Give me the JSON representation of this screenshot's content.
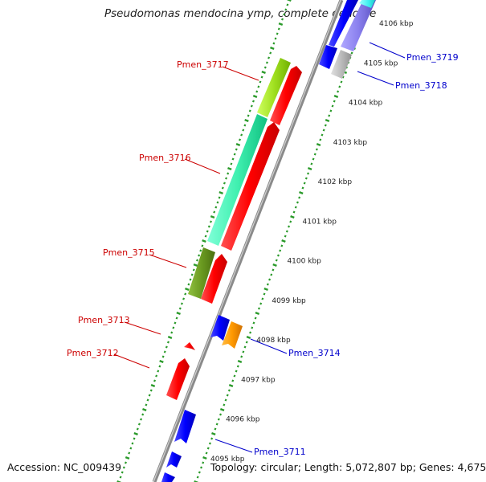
{
  "title": "Pseudomonas mendocina ymp, complete genome",
  "accession": "Accession: NC_009439",
  "topology": "Topology: circular; Length: 5,072,807 bp; Genes: 4,675",
  "scale_labels": [
    "4095 kbp",
    "4096 kbp",
    "4097 kbp",
    "4098 kbp",
    "4099 kbp",
    "4100 kbp",
    "4101 kbp",
    "4102 kbp",
    "4103 kbp",
    "4104 kbp",
    "4105 kbp",
    "4106 kbp"
  ],
  "genes": {
    "pmen_3711": "Pmen_3711",
    "pmen_3712": "Pmen_3712",
    "pmen_3713": "Pmen_3713",
    "pmen_3714": "Pmen_3714",
    "pmen_3715": "Pmen_3715",
    "pmen_3716": "Pmen_3716",
    "pmen_3717": "Pmen_3717",
    "pmen_3718": "Pmen_3718",
    "pmen_3719": "Pmen_3719"
  },
  "colors": {
    "reverse_label": "#cc0000",
    "forward_label": "#0000cc",
    "red_arrow": "#ff0000",
    "blue_arrow": "#0000ff",
    "orange_arrow": "#ff9900",
    "cog_lime": "#a0e020",
    "cog_aqua": "#40f0b0",
    "cog_olive": "#6a9a20",
    "cog_violet": "#8a80ee",
    "cog_cyan": "#40f0f0",
    "cog_grey": "#bbbbbb",
    "backbone": "#888888",
    "ticks": "#2a9a2a"
  }
}
